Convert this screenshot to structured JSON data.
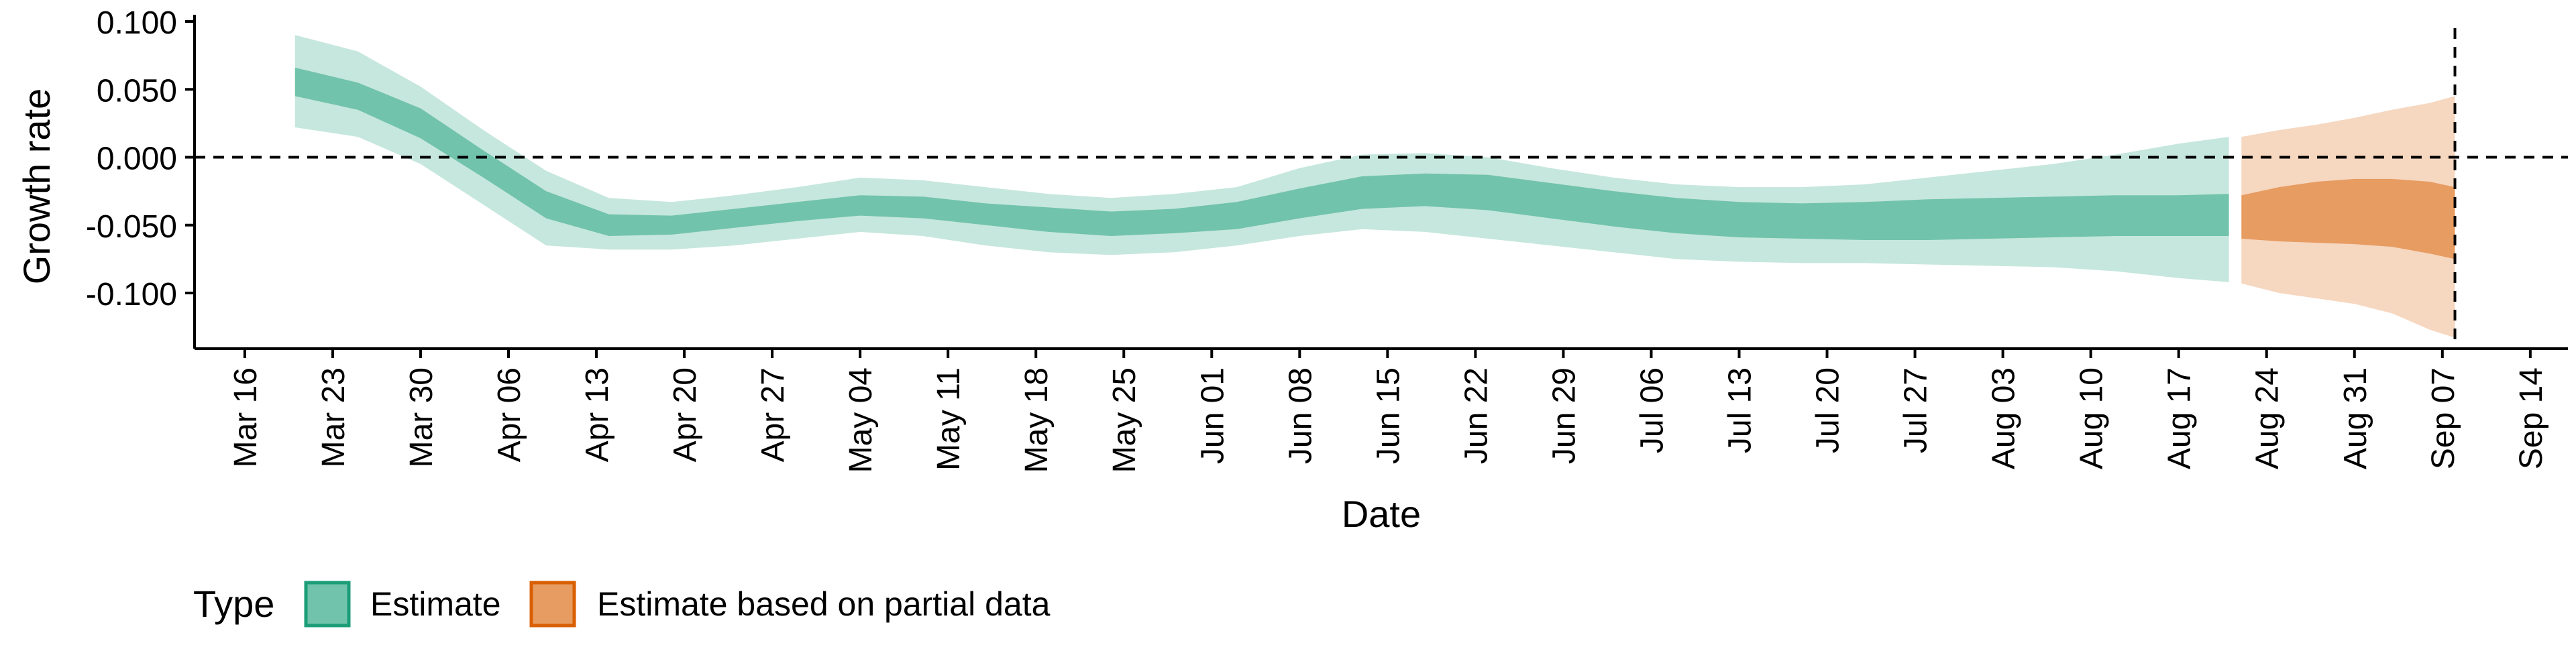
{
  "chart_data": {
    "type": "area",
    "xlabel": "Date",
    "ylabel": "Growth rate",
    "x_tick_labels": [
      "Mar 16",
      "Mar 23",
      "Mar 30",
      "Apr 06",
      "Apr 13",
      "Apr 20",
      "Apr 27",
      "May 04",
      "May 11",
      "May 18",
      "May 25",
      "Jun 01",
      "Jun 08",
      "Jun 15",
      "Jun 22",
      "Jun 29",
      "Jul 06",
      "Jul 13",
      "Jul 20",
      "Jul 27",
      "Aug 03",
      "Aug 10",
      "Aug 17",
      "Aug 24",
      "Aug 31",
      "Sep 07",
      "Sep 14"
    ],
    "y_tick_labels": [
      "0.100",
      "0.050",
      "0.000",
      "-0.050",
      "-0.100"
    ],
    "y_ticks": [
      0.1,
      0.05,
      0.0,
      -0.05,
      -0.1
    ],
    "xlim": [
      "2020-03-12",
      "2020-09-17"
    ],
    "ylim": [
      -0.141,
      0.102
    ],
    "grid": false,
    "reference_lines": {
      "horizontal_y": 0.0,
      "vertical_date": "2020-09-08",
      "style": "dashed"
    },
    "legend": {
      "title": "Type",
      "position": "bottom-left",
      "entries": [
        "Estimate",
        "Estimate based on partial data"
      ]
    },
    "colors": {
      "Estimate": "#1b9e77",
      "Estimate based on partial data": "#d95f02"
    },
    "series": [
      {
        "name": "Estimate",
        "dates": [
          "2020-03-20",
          "2020-03-25",
          "2020-03-30",
          "2020-04-04",
          "2020-04-09",
          "2020-04-14",
          "2020-04-19",
          "2020-04-24",
          "2020-04-29",
          "2020-05-04",
          "2020-05-09",
          "2020-05-14",
          "2020-05-19",
          "2020-05-24",
          "2020-05-29",
          "2020-06-03",
          "2020-06-08",
          "2020-06-13",
          "2020-06-18",
          "2020-06-23",
          "2020-06-28",
          "2020-07-03",
          "2020-07-08",
          "2020-07-13",
          "2020-07-18",
          "2020-07-23",
          "2020-07-28",
          "2020-08-02",
          "2020-08-07",
          "2020-08-12",
          "2020-08-17",
          "2020-08-21"
        ],
        "median": [
          0.055,
          0.045,
          0.025,
          -0.005,
          -0.035,
          -0.05,
          -0.05,
          -0.045,
          -0.04,
          -0.035,
          -0.037,
          -0.042,
          -0.046,
          -0.049,
          -0.047,
          -0.043,
          -0.034,
          -0.026,
          -0.024,
          -0.026,
          -0.032,
          -0.038,
          -0.043,
          -0.046,
          -0.047,
          -0.047,
          -0.046,
          -0.045,
          -0.044,
          -0.043,
          -0.043,
          -0.043
        ],
        "inner_lower": [
          0.045,
          0.035,
          0.014,
          -0.015,
          -0.045,
          -0.058,
          -0.057,
          -0.052,
          -0.047,
          -0.043,
          -0.045,
          -0.05,
          -0.055,
          -0.058,
          -0.056,
          -0.053,
          -0.045,
          -0.038,
          -0.036,
          -0.039,
          -0.045,
          -0.051,
          -0.056,
          -0.059,
          -0.06,
          -0.061,
          -0.061,
          -0.06,
          -0.059,
          -0.058,
          -0.058,
          -0.058
        ],
        "inner_upper": [
          0.066,
          0.055,
          0.036,
          0.005,
          -0.025,
          -0.042,
          -0.043,
          -0.038,
          -0.033,
          -0.028,
          -0.029,
          -0.034,
          -0.037,
          -0.04,
          -0.038,
          -0.033,
          -0.023,
          -0.014,
          -0.012,
          -0.013,
          -0.019,
          -0.025,
          -0.03,
          -0.033,
          -0.034,
          -0.033,
          -0.031,
          -0.03,
          -0.029,
          -0.028,
          -0.028,
          -0.027
        ],
        "outer_lower": [
          0.022,
          0.015,
          -0.005,
          -0.035,
          -0.065,
          -0.068,
          -0.068,
          -0.065,
          -0.06,
          -0.055,
          -0.058,
          -0.065,
          -0.07,
          -0.072,
          -0.07,
          -0.065,
          -0.058,
          -0.053,
          -0.055,
          -0.06,
          -0.065,
          -0.07,
          -0.075,
          -0.077,
          -0.078,
          -0.078,
          -0.079,
          -0.08,
          -0.081,
          -0.084,
          -0.089,
          -0.092
        ],
        "outer_upper": [
          0.09,
          0.078,
          0.052,
          0.02,
          -0.01,
          -0.03,
          -0.033,
          -0.028,
          -0.022,
          -0.015,
          -0.017,
          -0.022,
          -0.027,
          -0.03,
          -0.027,
          -0.022,
          -0.008,
          0.002,
          0.003,
          0.0,
          -0.008,
          -0.015,
          -0.02,
          -0.022,
          -0.022,
          -0.02,
          -0.015,
          -0.01,
          -0.005,
          0.002,
          0.01,
          0.015
        ]
      },
      {
        "name": "Estimate based on partial data",
        "dates": [
          "2020-08-22",
          "2020-08-25",
          "2020-08-28",
          "2020-08-31",
          "2020-09-03",
          "2020-09-06",
          "2020-09-08"
        ],
        "median": [
          -0.045,
          -0.042,
          -0.04,
          -0.04,
          -0.042,
          -0.045,
          -0.048
        ],
        "inner_lower": [
          -0.06,
          -0.062,
          -0.063,
          -0.064,
          -0.066,
          -0.071,
          -0.075
        ],
        "inner_upper": [
          -0.028,
          -0.022,
          -0.018,
          -0.016,
          -0.016,
          -0.018,
          -0.022
        ],
        "outer_lower": [
          -0.093,
          -0.1,
          -0.104,
          -0.108,
          -0.115,
          -0.127,
          -0.133
        ],
        "outer_upper": [
          0.015,
          0.02,
          0.024,
          0.029,
          0.035,
          0.04,
          0.045
        ]
      }
    ]
  }
}
